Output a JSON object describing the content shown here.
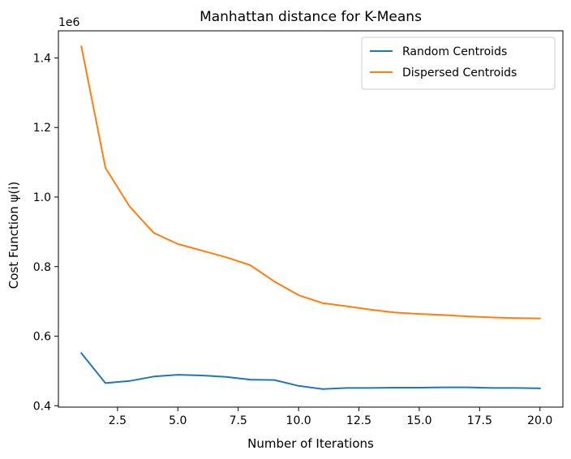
{
  "chart_data": {
    "type": "line",
    "title": "Manhattan distance for K-Means",
    "xlabel": "Number of Iterations",
    "ylabel": "Cost Function ψ(i)",
    "y_offset_label": "1e6",
    "xlim": [
      0.05,
      20.95
    ],
    "ylim": [
      0.396,
      1.478
    ],
    "x_ticks": [
      2.5,
      5.0,
      7.5,
      10.0,
      12.5,
      15.0,
      17.5,
      20.0
    ],
    "x_tick_labels": [
      "2.5",
      "5.0",
      "7.5",
      "10.0",
      "12.5",
      "15.0",
      "17.5",
      "20.0"
    ],
    "y_ticks": [
      0.4,
      0.6,
      0.8,
      1.0,
      1.2,
      1.4
    ],
    "y_tick_labels": [
      "0.4",
      "0.6",
      "0.8",
      "1.0",
      "1.2",
      "1.4"
    ],
    "grid": false,
    "legend_position": "top-right",
    "x": [
      1,
      2,
      3,
      4,
      5,
      6,
      7,
      8,
      9,
      10,
      11,
      12,
      13,
      14,
      15,
      16,
      17,
      18,
      19,
      20
    ],
    "series": [
      {
        "name": "Random Centroids",
        "color": "#1f77b4",
        "values": [
          0.551,
          0.465,
          0.471,
          0.484,
          0.489,
          0.487,
          0.483,
          0.475,
          0.474,
          0.457,
          0.448,
          0.451,
          0.451,
          0.452,
          0.452,
          0.453,
          0.453,
          0.451,
          0.451,
          0.45
        ]
      },
      {
        "name": "Dispersed Centroids",
        "color": "#ff7f0e",
        "values": [
          1.433,
          1.084,
          0.973,
          0.897,
          0.865,
          0.846,
          0.827,
          0.804,
          0.757,
          0.718,
          0.695,
          0.686,
          0.676,
          0.668,
          0.664,
          0.661,
          0.657,
          0.654,
          0.652,
          0.651
        ]
      }
    ]
  }
}
